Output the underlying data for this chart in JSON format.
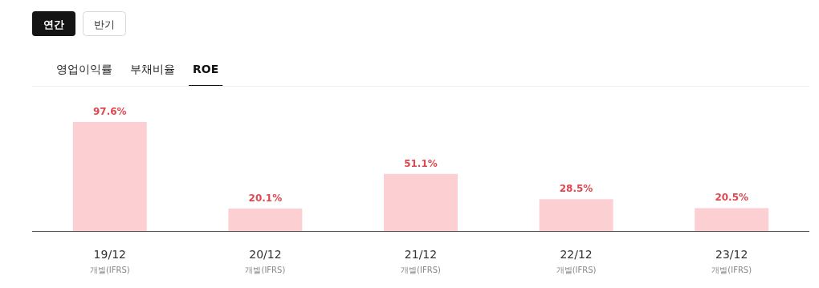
{
  "chart_data": {
    "type": "bar",
    "title": "ROE",
    "annotations": [
      "연간",
      "반기",
      "영업이익률",
      "부채비율"
    ],
    "categories": [
      "19/12\n개별(IFRS)",
      "20/12\n개별(IFRS)",
      "21/12\n개별(IFRS)",
      "22/12\n개별(IFRS)",
      "23/12\n개별(IFRS)"
    ],
    "values": [
      97.6,
      20.1,
      51.1,
      28.5,
      20.5
    ],
    "value_labels": [
      "97.6%",
      "20.1%",
      "51.1%",
      "28.5%",
      "20.5%"
    ],
    "color": "#fccfd3",
    "relative": false
  }
}
